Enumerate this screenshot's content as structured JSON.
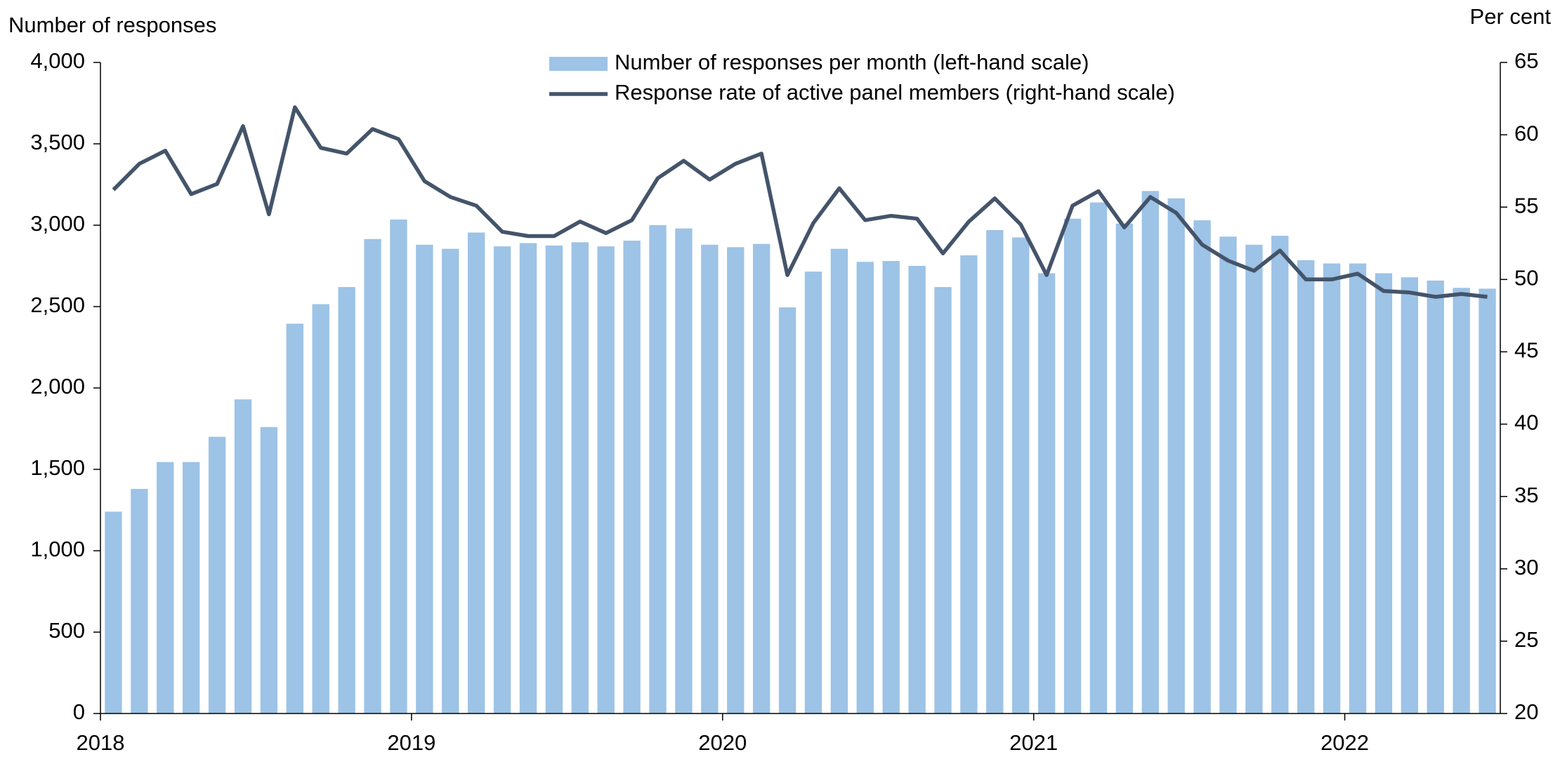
{
  "chart_data": {
    "type": "bar-line",
    "y_label": "Number of responses",
    "y2_label": "Per cent",
    "categories": [
      "2018",
      null,
      null,
      null,
      null,
      null,
      null,
      null,
      null,
      null,
      null,
      null,
      "2019",
      null,
      null,
      null,
      null,
      null,
      null,
      null,
      null,
      null,
      null,
      null,
      "2020",
      null,
      null,
      null,
      null,
      null,
      null,
      null,
      null,
      null,
      null,
      null,
      "2021",
      null,
      null,
      null,
      null,
      null,
      null,
      null,
      null,
      null,
      null,
      null,
      "2022",
      null,
      null,
      null,
      null,
      null
    ],
    "series": [
      {
        "name": "Number of responses per month (left-hand scale)",
        "type": "bar",
        "color": "#9dc3e6",
        "values": [
          1240,
          1380,
          1545,
          1545,
          1700,
          1930,
          1760,
          2395,
          2515,
          2620,
          2915,
          3035,
          2880,
          2855,
          2955,
          2870,
          2890,
          2875,
          2895,
          2870,
          2905,
          3000,
          2980,
          2880,
          2865,
          2885,
          2495,
          2715,
          2855,
          2775,
          2780,
          2750,
          2620,
          2815,
          2970,
          2925,
          2705,
          3040,
          3140,
          3010,
          3210,
          3165,
          3030,
          2930,
          2880,
          2935,
          2785,
          2765,
          2765,
          2705,
          2680,
          2660,
          2615,
          2610
        ]
      },
      {
        "name": "Response rate of active panel members (right-hand scale)",
        "type": "line",
        "axis": "y2",
        "color": "#44546a",
        "values": [
          56.2,
          58.0,
          58.9,
          55.9,
          56.6,
          60.6,
          54.5,
          61.9,
          59.1,
          58.7,
          60.4,
          59.7,
          56.8,
          55.7,
          55.1,
          53.3,
          53.0,
          53.0,
          54.0,
          53.2,
          54.1,
          57.0,
          58.2,
          56.9,
          58.0,
          58.7,
          50.3,
          53.9,
          56.3,
          54.1,
          54.4,
          54.2,
          51.8,
          54.0,
          55.6,
          53.8,
          50.3,
          55.1,
          56.1,
          53.6,
          55.7,
          54.6,
          52.4,
          51.3,
          50.6,
          52.0,
          50.0,
          50.0,
          50.4,
          49.2,
          49.1,
          48.8,
          49.0,
          48.8
        ]
      }
    ],
    "ylim": [
      0,
      4000
    ],
    "yticks": [
      {
        "value": 0,
        "label": "0"
      },
      {
        "value": 500,
        "label": "500"
      },
      {
        "value": 1000,
        "label": "1,000"
      },
      {
        "value": 1500,
        "label": "1,500"
      },
      {
        "value": 2000,
        "label": "2,000"
      },
      {
        "value": 2500,
        "label": "2,500"
      },
      {
        "value": 3000,
        "label": "3,000"
      },
      {
        "value": 3500,
        "label": "3,500"
      },
      {
        "value": 4000,
        "label": "4,000"
      }
    ],
    "y2lim": [
      20,
      65
    ],
    "y2ticks": [
      20,
      25,
      30,
      35,
      40,
      45,
      50,
      55,
      60,
      65
    ]
  }
}
